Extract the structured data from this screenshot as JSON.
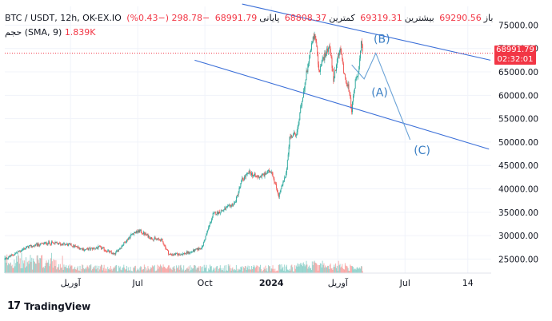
{
  "header": {
    "symbol": "BTC / USDT, 12h, OK-EX.IO",
    "open_label": "باز",
    "open_value": "69290.56",
    "high_label": "بیشترین",
    "high_value": "69319.31",
    "low_label": "کمترین",
    "low_value": "68808.37",
    "close_label": "پایانی",
    "close_value": "68991.79",
    "change": "−298.78 (−0.43%)"
  },
  "volume": {
    "label": "حجم",
    "params": "(SMA, 9)",
    "value": "1.839K"
  },
  "price_tag": {
    "price": "68991.79",
    "countdown": "02:32:01"
  },
  "brand": {
    "name": "TradingView",
    "logo": "17"
  },
  "colors": {
    "up": "#26a69a",
    "down": "#ef5350",
    "trend": "#3b6fd8",
    "wave": "#6aa2d6",
    "label": "#3b7fc4",
    "price_line": "#f23645"
  },
  "chart_data": {
    "type": "candlestick",
    "ylim": [
      22000,
      79000
    ],
    "y_ticks": [
      "75000.00",
      "70000.00",
      "65000.00",
      "60000.00",
      "55000.00",
      "50000.00",
      "45000.00",
      "40000.00",
      "35000.00",
      "30000.00",
      "25000.00"
    ],
    "y_tick_values": [
      75000,
      70000,
      65000,
      60000,
      55000,
      50000,
      45000,
      40000,
      35000,
      30000,
      25000
    ],
    "x_ticks": [
      "آوریل",
      "Jul",
      "Oct",
      "2024",
      "آوریل",
      "Jul",
      "14"
    ],
    "x_tick_days": [
      90,
      182,
      274,
      365,
      456,
      548,
      634
    ],
    "x_range_days": [
      0,
      666
    ],
    "current_price": 68991.79,
    "price_path_days": [
      0,
      30,
      60,
      90,
      110,
      130,
      150,
      175,
      185,
      200,
      215,
      225,
      240,
      255,
      270,
      285,
      300,
      315,
      325,
      335,
      345,
      355,
      365,
      375,
      385,
      390,
      400,
      410,
      420,
      425,
      430,
      440,
      445,
      450,
      455,
      460,
      465,
      470,
      475,
      480,
      485,
      488,
      490
    ],
    "price_path_values": [
      25000,
      27500,
      28500,
      28000,
      27000,
      27500,
      26000,
      30500,
      31000,
      29500,
      29000,
      26000,
      26000,
      26500,
      27500,
      34500,
      35500,
      37000,
      42000,
      43500,
      42500,
      43000,
      44000,
      38500,
      43000,
      51000,
      52000,
      62000,
      71000,
      73000,
      65000,
      69500,
      70500,
      63000,
      67500,
      70000,
      64000,
      62000,
      57000,
      63000,
      66000,
      71000,
      69000
    ],
    "trendlines": [
      {
        "name": "upper-channel",
        "days": [
          325,
          665
        ],
        "values": [
          79500,
          67500
        ]
      },
      {
        "name": "lower-channel",
        "days": [
          260,
          663
        ],
        "values": [
          67500,
          48500
        ]
      }
    ],
    "wave_path": {
      "days": [
        475,
        492,
        508,
        555
      ],
      "values": [
        66500,
        63500,
        69000,
        50500
      ]
    },
    "wave_labels": [
      {
        "text": "(B)",
        "day": 505,
        "value": 71200
      },
      {
        "text": "(A)",
        "day": 502,
        "value": 59800
      },
      {
        "text": "(C)",
        "day": 560,
        "value": 47400
      }
    ]
  }
}
